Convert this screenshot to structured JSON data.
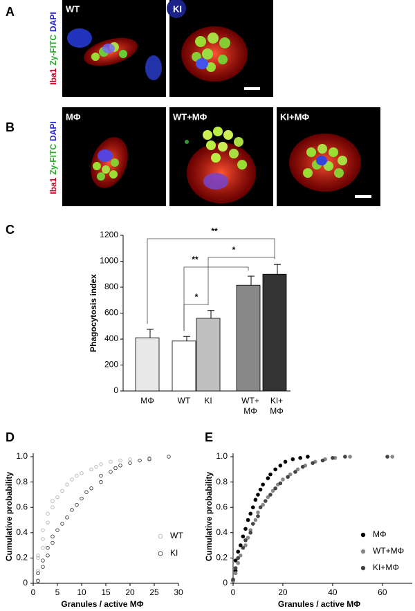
{
  "figure": {
    "panel_labels": [
      "A",
      "B",
      "C",
      "D",
      "E"
    ],
    "channels": [
      "Iba1",
      "Zy-FITC",
      "DAPI"
    ],
    "row_a_images": [
      "WT",
      "KI"
    ],
    "row_b_images": [
      "MΦ",
      "WT+MΦ",
      "KI+MΦ"
    ]
  },
  "chart_data": [
    {
      "type": "bar",
      "ylabel": "Phagocytosis index",
      "categories": [
        "MΦ",
        "WT",
        "KI",
        "WT+MΦ",
        "KI+MΦ"
      ],
      "values": [
        410,
        385,
        560,
        815,
        900
      ],
      "errors": [
        65,
        35,
        60,
        70,
        75
      ],
      "colors": [
        "#e8e8e8",
        "#ffffff",
        "#c0c0c0",
        "#888888",
        "#333333"
      ],
      "ylim": [
        0,
        1200
      ],
      "yticks": [
        0,
        200,
        400,
        600,
        800,
        1000,
        1200
      ],
      "annotations": [
        "**",
        "**",
        "*",
        "*"
      ]
    },
    {
      "type": "scatter",
      "xlabel": "Granules / active MΦ",
      "ylabel": "Cumulative probability",
      "marker": "open",
      "legend": "lower right",
      "xlim": [
        0,
        30
      ],
      "xticks": [
        0,
        5,
        10,
        15,
        20,
        25,
        30
      ],
      "ylim": [
        0,
        1
      ],
      "yticks": [
        0,
        0.2,
        0.4,
        0.6,
        0.8,
        {
          "value": 1,
          "label": "1.0"
        }
      ],
      "series": [
        {
          "name": "WT",
          "color": "#aaaaaa",
          "x": [
            1,
            1,
            1,
            1,
            2,
            2,
            2,
            3,
            3,
            4,
            4,
            5,
            6,
            7,
            8,
            9,
            10,
            12,
            13,
            14,
            16,
            18,
            20,
            24
          ],
          "y": [
            0.02,
            0.1,
            0.2,
            0.22,
            0.28,
            0.35,
            0.42,
            0.48,
            0.55,
            0.6,
            0.65,
            0.68,
            0.73,
            0.78,
            0.82,
            0.85,
            0.87,
            0.9,
            0.92,
            0.94,
            0.96,
            0.97,
            0.98,
            0.99
          ]
        },
        {
          "name": "KI",
          "color": "#222222",
          "x": [
            1,
            1,
            2,
            2,
            3,
            3,
            4,
            4,
            5,
            6,
            7,
            8,
            9,
            10,
            11,
            12,
            14,
            14,
            16,
            17,
            18,
            20,
            22,
            24,
            28
          ],
          "y": [
            0.02,
            0.08,
            0.13,
            0.18,
            0.22,
            0.28,
            0.32,
            0.37,
            0.42,
            0.47,
            0.52,
            0.58,
            0.62,
            0.67,
            0.72,
            0.75,
            0.8,
            0.85,
            0.88,
            0.91,
            0.93,
            0.95,
            0.97,
            0.98,
            1
          ]
        }
      ]
    },
    {
      "type": "scatter",
      "xlabel": "Granules / active MΦ",
      "ylabel": "Cumulative probability",
      "marker": "filled",
      "legend": "lower right",
      "xlim": [
        0,
        72
      ],
      "xticks": [
        0,
        20,
        40,
        60
      ],
      "ylim": [
        0,
        1
      ],
      "yticks": [
        0,
        0.2,
        0.4,
        0.6,
        0.8,
        {
          "value": 1,
          "label": "1.0"
        }
      ],
      "series": [
        {
          "name": "MΦ",
          "color": "#000000",
          "x": [
            0,
            1,
            1,
            2,
            3,
            4,
            5,
            6,
            7,
            8,
            9,
            10,
            11,
            12,
            14,
            15,
            17,
            19,
            21,
            24,
            27,
            30
          ],
          "y": [
            0.02,
            0.1,
            0.18,
            0.25,
            0.3,
            0.37,
            0.43,
            0.5,
            0.55,
            0.6,
            0.66,
            0.7,
            0.74,
            0.78,
            0.83,
            0.86,
            0.9,
            0.93,
            0.96,
            0.98,
            0.99,
            1
          ]
        },
        {
          "name": "WT+MΦ",
          "color": "#888888",
          "x": [
            0,
            1,
            2,
            3,
            5,
            6,
            7,
            9,
            10,
            12,
            14,
            16,
            18,
            20,
            23,
            26,
            29,
            33,
            37,
            41,
            47,
            64
          ],
          "y": [
            0.02,
            0.08,
            0.16,
            0.22,
            0.3,
            0.36,
            0.42,
            0.5,
            0.56,
            0.62,
            0.68,
            0.73,
            0.78,
            0.82,
            0.86,
            0.9,
            0.93,
            0.96,
            0.98,
            0.99,
            1,
            1
          ]
        },
        {
          "name": "KI+MΦ",
          "color": "#444444",
          "x": [
            0,
            1,
            2,
            4,
            5,
            7,
            8,
            10,
            11,
            13,
            15,
            17,
            19,
            22,
            25,
            28,
            32,
            36,
            40,
            45,
            62
          ],
          "y": [
            0.03,
            0.12,
            0.2,
            0.28,
            0.34,
            0.4,
            0.47,
            0.53,
            0.6,
            0.65,
            0.7,
            0.75,
            0.79,
            0.84,
            0.88,
            0.92,
            0.95,
            0.97,
            0.99,
            1,
            1
          ]
        }
      ]
    }
  ]
}
